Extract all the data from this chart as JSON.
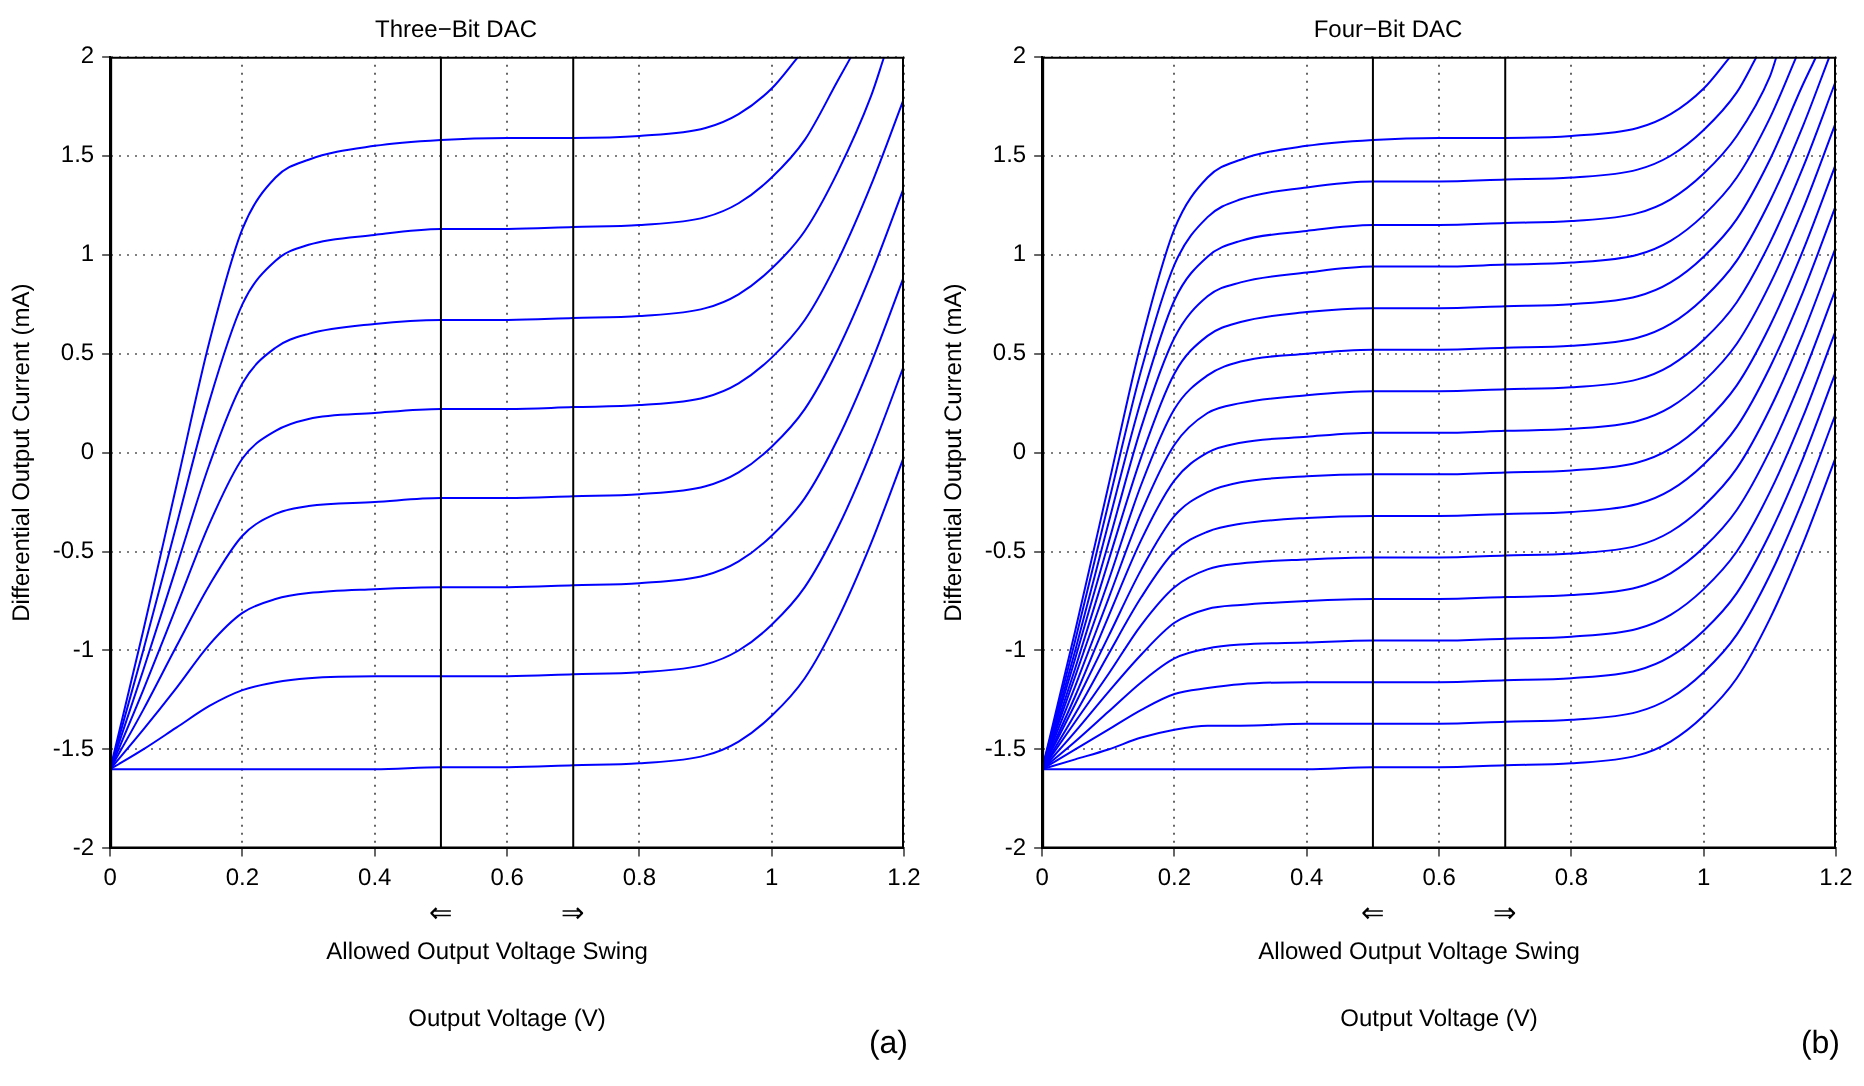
{
  "chart_data": [
    {
      "type": "line",
      "title": "Three−Bit DAC",
      "xlabel": "Output Voltage (V)",
      "ylabel": "Differential Output Current (mA)",
      "xlim": [
        0,
        1.2
      ],
      "xticks": [
        0,
        0.2,
        0.4,
        0.6,
        0.8,
        1,
        1.2
      ],
      "ylim": [
        -2,
        2
      ],
      "yticks": [
        -2,
        -1.5,
        -1,
        -0.5,
        0,
        0.5,
        1,
        1.5,
        2
      ],
      "grid": true,
      "legend": false,
      "marker": "none",
      "line_style": "solid",
      "ref_lines": [
        {
          "axis": "x",
          "value": 0.5,
          "label": "⇐",
          "color": "#000000"
        },
        {
          "axis": "x",
          "value": 0.7,
          "label": "⇒",
          "color": "#000000"
        }
      ],
      "annotations": [
        "Allowed Output Voltage Swing",
        "(a)"
      ],
      "x": [
        0,
        0.05,
        0.1,
        0.15,
        0.2,
        0.25,
        0.3,
        0.4,
        0.5,
        0.6,
        0.7,
        0.8,
        0.9,
        0.95,
        1,
        1.05,
        1.1,
        1.15,
        1.2
      ],
      "series": [
        {
          "color": "#0000ff",
          "x": [
            0,
            0.05,
            0.1,
            0.15,
            0.2,
            0.25,
            0.3,
            0.4,
            0.5,
            0.6,
            0.7,
            0.8,
            0.9,
            0.95,
            1,
            1.04
          ],
          "values": [
            -1.6,
            -0.9,
            -0.17,
            0.56,
            1.13,
            1.39,
            1.48,
            1.55,
            1.58,
            1.59,
            1.59,
            1.6,
            1.64,
            1.71,
            1.84,
            2
          ]
        },
        {
          "color": "#0000ff",
          "x": [
            0,
            0.05,
            0.1,
            0.15,
            0.2,
            0.25,
            0.3,
            0.4,
            0.5,
            0.6,
            0.7,
            0.8,
            0.9,
            0.95,
            1,
            1.05,
            1.1,
            1.12
          ],
          "values": [
            -1.6,
            -1,
            -0.37,
            0.26,
            0.75,
            0.97,
            1.05,
            1.1,
            1.13,
            1.13,
            1.14,
            1.15,
            1.19,
            1.26,
            1.39,
            1.58,
            1.88,
            2
          ]
        },
        {
          "color": "#0000ff",
          "x": [
            0,
            0.05,
            0.1,
            0.15,
            0.2,
            0.25,
            0.3,
            0.4,
            0.5,
            0.6,
            0.7,
            0.8,
            0.9,
            0.95,
            1,
            1.05,
            1.1,
            1.15,
            1.17
          ],
          "values": [
            -1.6,
            -1.1,
            -0.58,
            -0.06,
            0.35,
            0.53,
            0.6,
            0.65,
            0.67,
            0.67,
            0.68,
            0.69,
            0.73,
            0.8,
            0.93,
            1.12,
            1.42,
            1.8,
            2
          ]
        },
        {
          "color": "#0000ff",
          "values": [
            -1.6,
            -1.2,
            -0.78,
            -0.36,
            -0.03,
            0.11,
            0.17,
            0.2,
            0.22,
            0.22,
            0.23,
            0.24,
            0.28,
            0.35,
            0.48,
            0.67,
            0.97,
            1.35,
            1.79
          ]
        },
        {
          "color": "#0000ff",
          "values": [
            -1.6,
            -1.3,
            -0.98,
            -0.67,
            -0.42,
            -0.31,
            -0.27,
            -0.25,
            -0.23,
            -0.23,
            -0.22,
            -0.21,
            -0.17,
            -0.1,
            0.03,
            0.22,
            0.52,
            0.9,
            1.34
          ]
        },
        {
          "color": "#0000ff",
          "values": [
            -1.6,
            -1.4,
            -1.19,
            -0.97,
            -0.81,
            -0.74,
            -0.71,
            -0.69,
            -0.68,
            -0.68,
            -0.67,
            -0.66,
            -0.62,
            -0.55,
            -0.42,
            -0.23,
            0.07,
            0.45,
            0.89
          ]
        },
        {
          "color": "#0000ff",
          "values": [
            -1.6,
            -1.5,
            -1.39,
            -1.28,
            -1.2,
            -1.16,
            -1.14,
            -1.13,
            -1.13,
            -1.13,
            -1.12,
            -1.11,
            -1.07,
            -1,
            -0.87,
            -0.68,
            -0.38,
            0,
            0.44
          ]
        },
        {
          "color": "#0000ff",
          "values": [
            -1.6,
            -1.6,
            -1.6,
            -1.6,
            -1.6,
            -1.6,
            -1.6,
            -1.6,
            -1.59,
            -1.59,
            -1.58,
            -1.57,
            -1.53,
            -1.46,
            -1.33,
            -1.14,
            -0.84,
            -0.46,
            -0.02
          ]
        }
      ]
    },
    {
      "type": "line",
      "title": "Four−Bit DAC",
      "xlabel": "Output Voltage (V)",
      "ylabel": "Differential Output Current (mA)",
      "xlim": [
        0,
        1.2
      ],
      "xticks": [
        0,
        0.2,
        0.4,
        0.6,
        0.8,
        1,
        1.2
      ],
      "ylim": [
        -2,
        2
      ],
      "yticks": [
        -2,
        -1.5,
        -1,
        -0.5,
        0,
        0.5,
        1,
        1.5,
        2
      ],
      "grid": true,
      "legend": false,
      "marker": "none",
      "line_style": "solid",
      "ref_lines": [
        {
          "axis": "x",
          "value": 0.5,
          "label": "⇐",
          "color": "#000000"
        },
        {
          "axis": "x",
          "value": 0.7,
          "label": "⇒",
          "color": "#000000"
        }
      ],
      "annotations": [
        "Allowed Output Voltage Swing",
        "(b)"
      ],
      "x": [
        0,
        0.05,
        0.1,
        0.15,
        0.2,
        0.25,
        0.3,
        0.4,
        0.5,
        0.6,
        0.7,
        0.8,
        0.9,
        0.95,
        1,
        1.05,
        1.1,
        1.15,
        1.2
      ],
      "series": [
        {
          "color": "#0000ff",
          "x": [
            0,
            0.05,
            0.1,
            0.15,
            0.2,
            0.25,
            0.3,
            0.4,
            0.5,
            0.6,
            0.7,
            0.8,
            0.9,
            0.95,
            1,
            1.04
          ],
          "values": [
            -1.6,
            -0.9,
            -0.17,
            0.56,
            1.13,
            1.39,
            1.48,
            1.55,
            1.58,
            1.59,
            1.59,
            1.6,
            1.64,
            1.71,
            1.84,
            2
          ]
        },
        {
          "color": "#0000ff",
          "x": [
            0,
            0.05,
            0.1,
            0.15,
            0.2,
            0.25,
            0.3,
            0.4,
            0.5,
            0.6,
            0.7,
            0.8,
            0.9,
            0.95,
            1,
            1.05,
            1.08
          ],
          "values": [
            -1.6,
            -0.95,
            -0.26,
            0.42,
            0.95,
            1.19,
            1.28,
            1.34,
            1.37,
            1.37,
            1.38,
            1.39,
            1.43,
            1.5,
            1.63,
            1.82,
            2
          ]
        },
        {
          "color": "#0000ff",
          "x": [
            0,
            0.05,
            0.1,
            0.15,
            0.2,
            0.25,
            0.3,
            0.4,
            0.5,
            0.6,
            0.7,
            0.8,
            0.9,
            0.95,
            1,
            1.05,
            1.1,
            1.11
          ],
          "values": [
            -1.6,
            -1,
            -0.36,
            0.27,
            0.77,
            0.99,
            1.07,
            1.12,
            1.15,
            1.15,
            1.16,
            1.17,
            1.21,
            1.28,
            1.41,
            1.6,
            1.9,
            2
          ]
        },
        {
          "color": "#0000ff",
          "x": [
            0,
            0.05,
            0.1,
            0.15,
            0.2,
            0.25,
            0.3,
            0.4,
            0.5,
            0.6,
            0.7,
            0.8,
            0.9,
            0.95,
            1,
            1.05,
            1.1,
            1.14
          ],
          "values": [
            -1.6,
            -1.04,
            -0.46,
            0.13,
            0.58,
            0.79,
            0.86,
            0.91,
            0.94,
            0.94,
            0.95,
            0.96,
            1,
            1.07,
            1.2,
            1.39,
            1.69,
            2
          ]
        },
        {
          "color": "#0000ff",
          "x": [
            0,
            0.05,
            0.1,
            0.15,
            0.2,
            0.25,
            0.3,
            0.4,
            0.5,
            0.6,
            0.7,
            0.8,
            0.9,
            0.95,
            1,
            1.05,
            1.1,
            1.15,
            1.17
          ],
          "values": [
            -1.6,
            -1.09,
            -0.55,
            -0.02,
            0.4,
            0.59,
            0.66,
            0.71,
            0.73,
            0.73,
            0.74,
            0.75,
            0.79,
            0.86,
            0.99,
            1.18,
            1.48,
            1.86,
            2
          ]
        },
        {
          "color": "#0000ff",
          "x": [
            0,
            0.05,
            0.1,
            0.15,
            0.2,
            0.25,
            0.3,
            0.4,
            0.5,
            0.6,
            0.7,
            0.8,
            0.9,
            0.95,
            1,
            1.05,
            1.1,
            1.15,
            1.19
          ],
          "values": [
            -1.6,
            -1.13,
            -0.65,
            -0.16,
            0.22,
            0.39,
            0.46,
            0.5,
            0.52,
            0.52,
            0.53,
            0.54,
            0.58,
            0.65,
            0.78,
            0.97,
            1.27,
            1.65,
            2
          ]
        },
        {
          "color": "#0000ff",
          "values": [
            -1.6,
            -1.18,
            -0.74,
            -0.3,
            0.04,
            0.2,
            0.25,
            0.29,
            0.31,
            0.31,
            0.32,
            0.33,
            0.37,
            0.44,
            0.57,
            0.76,
            1.06,
            1.44,
            1.88
          ]
        },
        {
          "color": "#0000ff",
          "values": [
            -1.6,
            -1.23,
            -0.83,
            -0.44,
            -0.14,
            0,
            0.05,
            0.08,
            0.1,
            0.1,
            0.11,
            0.12,
            0.16,
            0.23,
            0.36,
            0.55,
            0.85,
            1.23,
            1.67
          ]
        },
        {
          "color": "#0000ff",
          "values": [
            -1.6,
            -1.27,
            -0.93,
            -0.59,
            -0.32,
            -0.2,
            -0.15,
            -0.12,
            -0.11,
            -0.11,
            -0.1,
            -0.09,
            -0.05,
            0.02,
            0.15,
            0.34,
            0.64,
            1.02,
            1.46
          ]
        },
        {
          "color": "#0000ff",
          "values": [
            -1.6,
            -1.32,
            -1.02,
            -0.73,
            -0.5,
            -0.4,
            -0.36,
            -0.33,
            -0.32,
            -0.32,
            -0.31,
            -0.3,
            -0.26,
            -0.19,
            -0.06,
            0.13,
            0.43,
            0.81,
            1.25
          ]
        },
        {
          "color": "#0000ff",
          "values": [
            -1.6,
            -1.36,
            -1.12,
            -0.87,
            -0.68,
            -0.59,
            -0.56,
            -0.54,
            -0.53,
            -0.53,
            -0.52,
            -0.51,
            -0.47,
            -0.4,
            -0.27,
            -0.08,
            0.22,
            0.6,
            1.04
          ]
        },
        {
          "color": "#0000ff",
          "values": [
            -1.6,
            -1.41,
            -1.21,
            -1.02,
            -0.86,
            -0.79,
            -0.77,
            -0.75,
            -0.74,
            -0.74,
            -0.73,
            -0.72,
            -0.68,
            -0.61,
            -0.48,
            -0.29,
            0.01,
            0.39,
            0.83
          ]
        },
        {
          "color": "#0000ff",
          "values": [
            -1.6,
            -1.46,
            -1.31,
            -1.16,
            -1.04,
            -0.99,
            -0.97,
            -0.96,
            -0.95,
            -0.95,
            -0.94,
            -0.93,
            -0.89,
            -0.82,
            -0.69,
            -0.5,
            -0.2,
            0.18,
            0.62
          ]
        },
        {
          "color": "#0000ff",
          "values": [
            -1.6,
            -1.5,
            -1.4,
            -1.3,
            -1.22,
            -1.19,
            -1.17,
            -1.16,
            -1.16,
            -1.16,
            -1.15,
            -1.14,
            -1.1,
            -1.03,
            -0.9,
            -0.71,
            -0.41,
            -0.03,
            0.41
          ]
        },
        {
          "color": "#0000ff",
          "values": [
            -1.6,
            -1.55,
            -1.5,
            -1.44,
            -1.4,
            -1.38,
            -1.38,
            -1.37,
            -1.37,
            -1.37,
            -1.36,
            -1.35,
            -1.31,
            -1.24,
            -1.11,
            -0.92,
            -0.62,
            -0.24,
            0.2
          ]
        },
        {
          "color": "#0000ff",
          "values": [
            -1.6,
            -1.6,
            -1.6,
            -1.6,
            -1.6,
            -1.6,
            -1.6,
            -1.6,
            -1.59,
            -1.59,
            -1.58,
            -1.57,
            -1.53,
            -1.46,
            -1.33,
            -1.14,
            -0.84,
            -0.46,
            -0.02
          ]
        }
      ]
    }
  ]
}
